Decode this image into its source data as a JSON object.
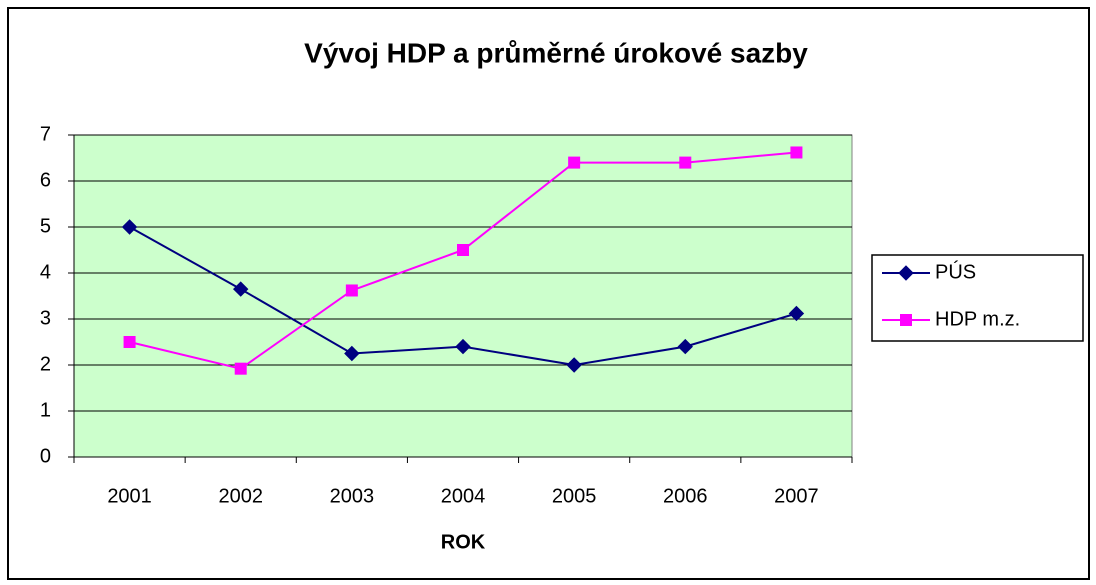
{
  "chart_data": {
    "type": "line",
    "title": "Vývoj HDP a průměrné úrokové sazby",
    "x_label": "ROK",
    "categories": [
      "2001",
      "2002",
      "2003",
      "2004",
      "2005",
      "2006",
      "2007"
    ],
    "series": [
      {
        "name": "PÚS",
        "color": "#000080",
        "marker": "diamond",
        "values": [
          5,
          3.65,
          2.25,
          2.4,
          2,
          2.4,
          3.12
        ]
      },
      {
        "name": "HDP m.z.",
        "color": "#ff00ff",
        "marker": "square",
        "values": [
          2.5,
          1.92,
          3.62,
          4.5,
          6.4,
          6.4,
          6.62
        ]
      }
    ],
    "ylim": [
      0,
      7
    ],
    "yticks": [
      0,
      1,
      2,
      3,
      4,
      5,
      6,
      7
    ],
    "grid": true,
    "plot_background": "#ccffcc",
    "legend": "right"
  }
}
